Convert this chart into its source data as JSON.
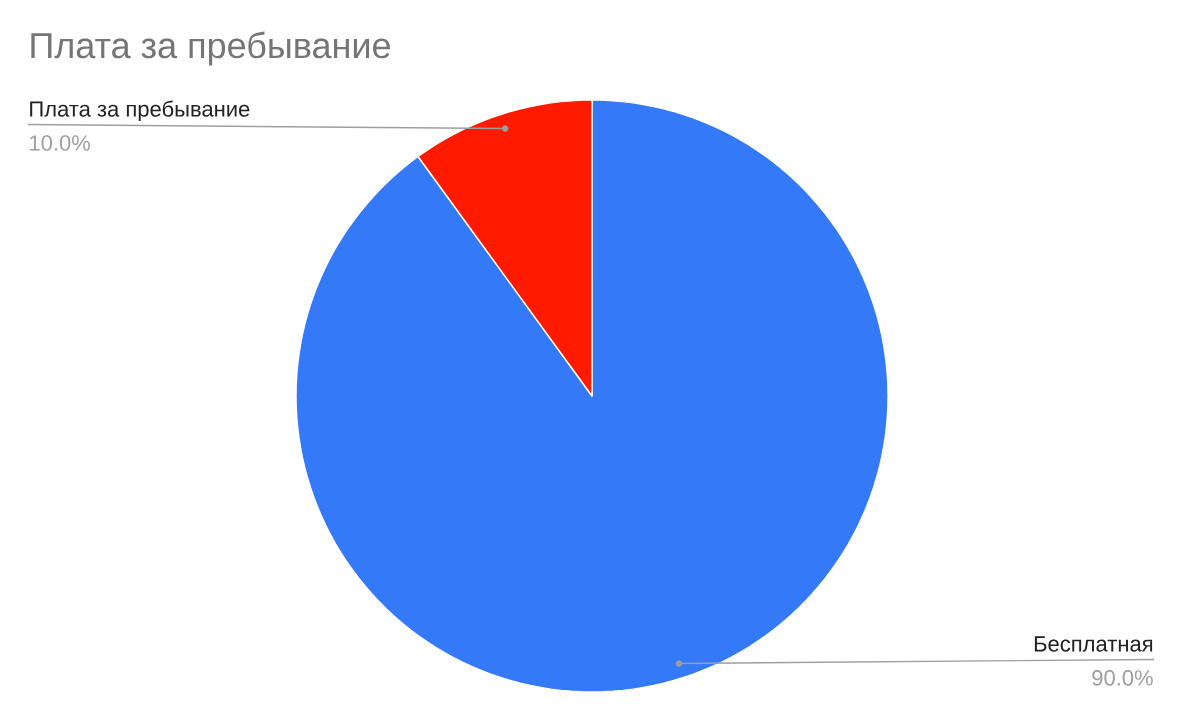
{
  "chart_data": {
    "type": "pie",
    "title": "Плата за пребывание",
    "categories": [
      "Бесплатная",
      "Плата за пребывание"
    ],
    "values": [
      90,
      10
    ],
    "colors": [
      "#3479f7",
      "#ff1a00"
    ],
    "value_labels": [
      "90.0%",
      "10.0%"
    ]
  }
}
